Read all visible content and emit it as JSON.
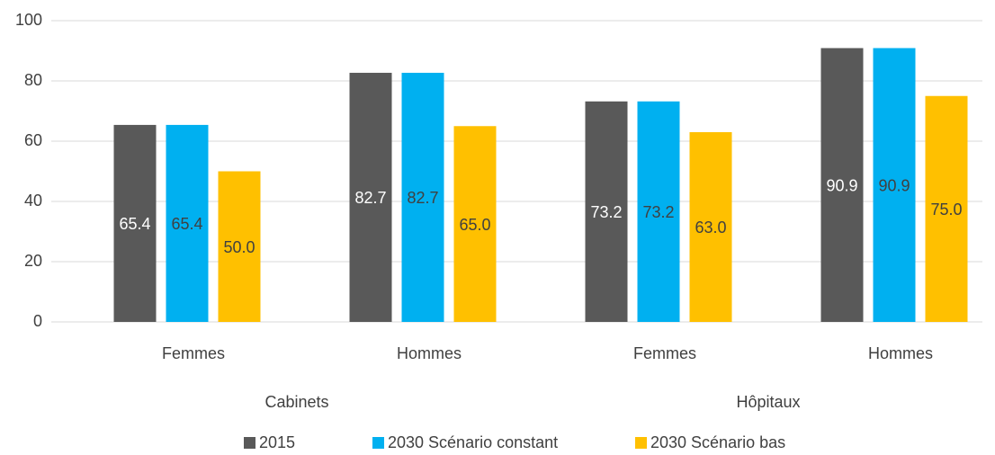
{
  "chart_data": {
    "type": "bar",
    "categories": [
      "Femmes",
      "Hommes",
      "Femmes",
      "Hommes"
    ],
    "groups": [
      "Cabinets",
      "Hôpitaux"
    ],
    "series": [
      {
        "name": "2015",
        "color": "#595959",
        "label_color": "#ffffff",
        "values": [
          65.4,
          82.7,
          73.2,
          90.9
        ],
        "value_labels": [
          "65.4",
          "82.7",
          "73.2",
          "90.9"
        ]
      },
      {
        "name": "2030 Scénario constant",
        "color": "#00b0f0",
        "label_color": "#404040",
        "values": [
          65.4,
          82.7,
          73.2,
          90.9
        ],
        "value_labels": [
          "65.4",
          "82.7",
          "73.2",
          "90.9"
        ]
      },
      {
        "name": "2030 Scénario bas",
        "color": "#ffc000",
        "label_color": "#404040",
        "values": [
          50,
          65,
          63,
          75
        ],
        "value_labels": [
          "50.0",
          "65.0",
          "63.0",
          "75.0"
        ]
      }
    ],
    "ylim": [
      0,
      100
    ],
    "yticks": [
      0,
      20,
      40,
      60,
      80,
      100
    ],
    "grid": true,
    "legend": "bottom"
  }
}
